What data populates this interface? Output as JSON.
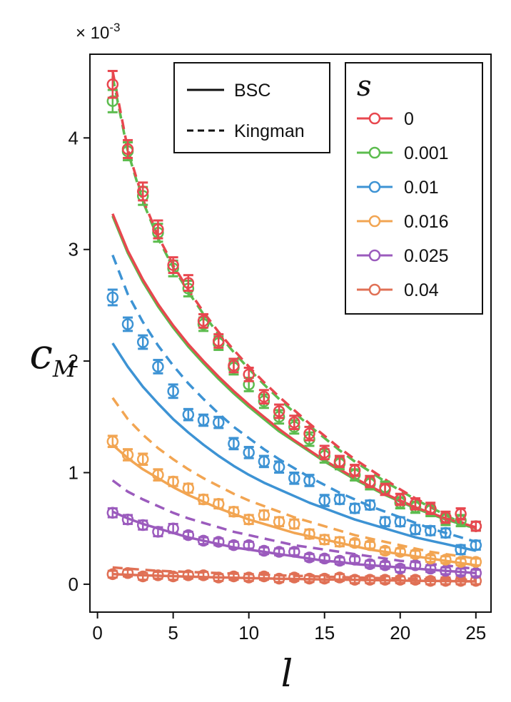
{
  "chart_data": {
    "type": "scatter",
    "xlabel": "l",
    "ylabel_main": "c",
    "ylabel_sub": "M",
    "multiplier": "× 10",
    "multiplier_exp": "-3",
    "xlim": [
      -0.5,
      26
    ],
    "ylim": [
      -0.25,
      4.75
    ],
    "xticks": [
      0,
      5,
      10,
      15,
      20,
      25
    ],
    "yticks": [
      0,
      1,
      2,
      3,
      4
    ],
    "x": [
      1,
      2,
      3,
      4,
      5,
      6,
      7,
      8,
      9,
      10,
      11,
      12,
      13,
      14,
      15,
      16,
      17,
      18,
      19,
      20,
      21,
      22,
      23,
      24,
      25
    ],
    "model_legend": [
      {
        "label": "BSC",
        "style": "solid"
      },
      {
        "label": "Kingman",
        "style": "dashed"
      }
    ],
    "legend_title": "s",
    "series": [
      {
        "name": "0",
        "color": "#e8474f",
        "values": [
          4.48,
          3.9,
          3.52,
          3.18,
          2.86,
          2.7,
          2.36,
          2.18,
          1.96,
          1.88,
          1.68,
          1.55,
          1.45,
          1.35,
          1.18,
          1.1,
          1.02,
          0.92,
          0.85,
          0.76,
          0.72,
          0.68,
          0.6,
          0.63,
          0.52
        ],
        "err": [
          0.12,
          0.08,
          0.08,
          0.08,
          0.07,
          0.07,
          0.06,
          0.06,
          0.06,
          0.06,
          0.06,
          0.06,
          0.06,
          0.06,
          0.06,
          0.05,
          0.05,
          0.05,
          0.05,
          0.05,
          0.05,
          0.05,
          0.05,
          0.05,
          0.04
        ],
        "bsc": [
          3.32,
          2.99,
          2.73,
          2.51,
          2.32,
          2.15,
          2.0,
          1.86,
          1.73,
          1.61,
          1.5,
          1.39,
          1.29,
          1.2,
          1.11,
          1.03,
          0.95,
          0.88,
          0.81,
          0.75,
          0.69,
          0.64,
          0.59,
          0.55,
          0.51
        ],
        "kingman": [
          4.6,
          3.9,
          3.45,
          3.12,
          2.86,
          2.64,
          2.44,
          2.26,
          2.1,
          1.95,
          1.81,
          1.68,
          1.56,
          1.44,
          1.33,
          1.22,
          1.12,
          1.03,
          0.94,
          0.85,
          0.77,
          0.7,
          0.63,
          0.56,
          0.5
        ]
      },
      {
        "name": "0.001",
        "color": "#5cbc4e",
        "values": [
          4.33,
          3.88,
          3.48,
          3.15,
          2.83,
          2.65,
          2.33,
          2.16,
          1.94,
          1.79,
          1.64,
          1.5,
          1.41,
          1.3,
          1.15,
          1.08,
          0.98,
          0.9,
          0.87,
          0.73,
          0.69,
          0.66,
          0.58,
          0.57,
          0.52
        ],
        "err": [
          0.1,
          0.08,
          0.08,
          0.08,
          0.07,
          0.07,
          0.06,
          0.06,
          0.06,
          0.06,
          0.06,
          0.06,
          0.06,
          0.06,
          0.06,
          0.05,
          0.05,
          0.05,
          0.05,
          0.05,
          0.05,
          0.05,
          0.05,
          0.05,
          0.04
        ],
        "bsc": [
          3.3,
          2.97,
          2.71,
          2.49,
          2.3,
          2.13,
          1.98,
          1.84,
          1.71,
          1.59,
          1.48,
          1.37,
          1.28,
          1.19,
          1.1,
          1.02,
          0.94,
          0.87,
          0.8,
          0.74,
          0.68,
          0.63,
          0.58,
          0.54,
          0.5
        ],
        "kingman": [
          4.55,
          3.88,
          3.43,
          3.1,
          2.84,
          2.62,
          2.42,
          2.24,
          2.08,
          1.93,
          1.79,
          1.66,
          1.54,
          1.42,
          1.31,
          1.2,
          1.1,
          1.01,
          0.92,
          0.84,
          0.76,
          0.69,
          0.62,
          0.55,
          0.49
        ]
      },
      {
        "name": "0.01",
        "color": "#3d93d4",
        "values": [
          2.57,
          2.33,
          2.17,
          1.95,
          1.73,
          1.52,
          1.47,
          1.45,
          1.26,
          1.18,
          1.1,
          1.05,
          0.95,
          0.93,
          0.75,
          0.76,
          0.68,
          0.71,
          0.56,
          0.56,
          0.49,
          0.48,
          0.46,
          0.31,
          0.35
        ],
        "err": [
          0.07,
          0.06,
          0.06,
          0.06,
          0.06,
          0.05,
          0.05,
          0.05,
          0.05,
          0.05,
          0.05,
          0.05,
          0.05,
          0.05,
          0.05,
          0.04,
          0.04,
          0.04,
          0.04,
          0.04,
          0.04,
          0.04,
          0.04,
          0.04,
          0.04
        ],
        "bsc": [
          2.16,
          1.95,
          1.77,
          1.62,
          1.48,
          1.36,
          1.25,
          1.15,
          1.06,
          0.98,
          0.91,
          0.85,
          0.79,
          0.73,
          0.68,
          0.63,
          0.58,
          0.54,
          0.5,
          0.46,
          0.42,
          0.39,
          0.36,
          0.33,
          0.3
        ],
        "kingman": [
          2.95,
          2.6,
          2.35,
          2.14,
          1.96,
          1.8,
          1.66,
          1.53,
          1.41,
          1.31,
          1.21,
          1.12,
          1.04,
          0.96,
          0.89,
          0.82,
          0.76,
          0.7,
          0.65,
          0.6,
          0.55,
          0.5,
          0.46,
          0.42,
          0.38
        ]
      },
      {
        "name": "0.016",
        "color": "#f2a552",
        "values": [
          1.28,
          1.16,
          1.12,
          0.98,
          0.92,
          0.86,
          0.76,
          0.72,
          0.65,
          0.58,
          0.62,
          0.56,
          0.54,
          0.45,
          0.4,
          0.38,
          0.37,
          0.35,
          0.3,
          0.29,
          0.27,
          0.23,
          0.22,
          0.2,
          0.2
        ],
        "err": [
          0.05,
          0.05,
          0.05,
          0.05,
          0.04,
          0.04,
          0.04,
          0.04,
          0.04,
          0.04,
          0.04,
          0.04,
          0.04,
          0.04,
          0.04,
          0.04,
          0.03,
          0.03,
          0.03,
          0.03,
          0.03,
          0.03,
          0.03,
          0.03,
          0.03
        ],
        "bsc": [
          1.25,
          1.13,
          1.03,
          0.95,
          0.87,
          0.8,
          0.74,
          0.68,
          0.63,
          0.58,
          0.54,
          0.5,
          0.46,
          0.43,
          0.4,
          0.37,
          0.34,
          0.31,
          0.29,
          0.27,
          0.25,
          0.23,
          0.21,
          0.19,
          0.17
        ],
        "kingman": [
          1.67,
          1.48,
          1.34,
          1.22,
          1.12,
          1.03,
          0.95,
          0.88,
          0.81,
          0.75,
          0.7,
          0.65,
          0.6,
          0.56,
          0.52,
          0.48,
          0.44,
          0.41,
          0.38,
          0.35,
          0.32,
          0.29,
          0.27,
          0.25,
          0.23
        ]
      },
      {
        "name": "0.025",
        "color": "#9b5bbd",
        "values": [
          0.64,
          0.58,
          0.53,
          0.47,
          0.5,
          0.44,
          0.39,
          0.38,
          0.35,
          0.35,
          0.3,
          0.29,
          0.29,
          0.24,
          0.23,
          0.21,
          0.22,
          0.18,
          0.17,
          0.14,
          0.17,
          0.14,
          0.12,
          0.11,
          0.1
        ],
        "err": [
          0.04,
          0.04,
          0.04,
          0.04,
          0.04,
          0.03,
          0.03,
          0.03,
          0.03,
          0.03,
          0.03,
          0.03,
          0.03,
          0.03,
          0.03,
          0.03,
          0.03,
          0.03,
          0.03,
          0.03,
          0.03,
          0.03,
          0.03,
          0.03,
          0.03
        ],
        "bsc": [
          0.65,
          0.59,
          0.54,
          0.5,
          0.46,
          0.42,
          0.39,
          0.36,
          0.33,
          0.31,
          0.29,
          0.27,
          0.25,
          0.23,
          0.21,
          0.2,
          0.18,
          0.17,
          0.16,
          0.15,
          0.14,
          0.13,
          0.12,
          0.11,
          0.1
        ],
        "kingman": [
          0.93,
          0.83,
          0.76,
          0.7,
          0.64,
          0.59,
          0.55,
          0.51,
          0.47,
          0.44,
          0.41,
          0.38,
          0.35,
          0.33,
          0.31,
          0.29,
          0.27,
          0.25,
          0.23,
          0.21,
          0.2,
          0.18,
          0.17,
          0.15,
          0.14
        ]
      },
      {
        "name": "0.04",
        "color": "#e07055",
        "values": [
          0.09,
          0.1,
          0.07,
          0.08,
          0.07,
          0.08,
          0.08,
          0.06,
          0.07,
          0.06,
          0.07,
          0.05,
          0.06,
          0.05,
          0.05,
          0.06,
          0.04,
          0.04,
          0.04,
          0.04,
          0.04,
          0.03,
          0.03,
          0.03,
          0.03
        ],
        "err": [
          0.03,
          0.03,
          0.03,
          0.03,
          0.03,
          0.03,
          0.03,
          0.03,
          0.03,
          0.03,
          0.03,
          0.03,
          0.03,
          0.03,
          0.03,
          0.03,
          0.03,
          0.03,
          0.03,
          0.03,
          0.03,
          0.03,
          0.03,
          0.03,
          0.03
        ],
        "bsc": [
          0.09,
          0.085,
          0.08,
          0.076,
          0.072,
          0.068,
          0.064,
          0.061,
          0.058,
          0.055,
          0.052,
          0.049,
          0.047,
          0.045,
          0.043,
          0.041,
          0.039,
          0.037,
          0.035,
          0.033,
          0.031,
          0.03,
          0.028,
          0.027,
          0.025
        ],
        "kingman": [
          0.15,
          0.14,
          0.13,
          0.12,
          0.115,
          0.11,
          0.105,
          0.1,
          0.095,
          0.09,
          0.085,
          0.08,
          0.076,
          0.072,
          0.068,
          0.064,
          0.06,
          0.057,
          0.054,
          0.051,
          0.048,
          0.045,
          0.043,
          0.041,
          0.039
        ]
      }
    ]
  }
}
